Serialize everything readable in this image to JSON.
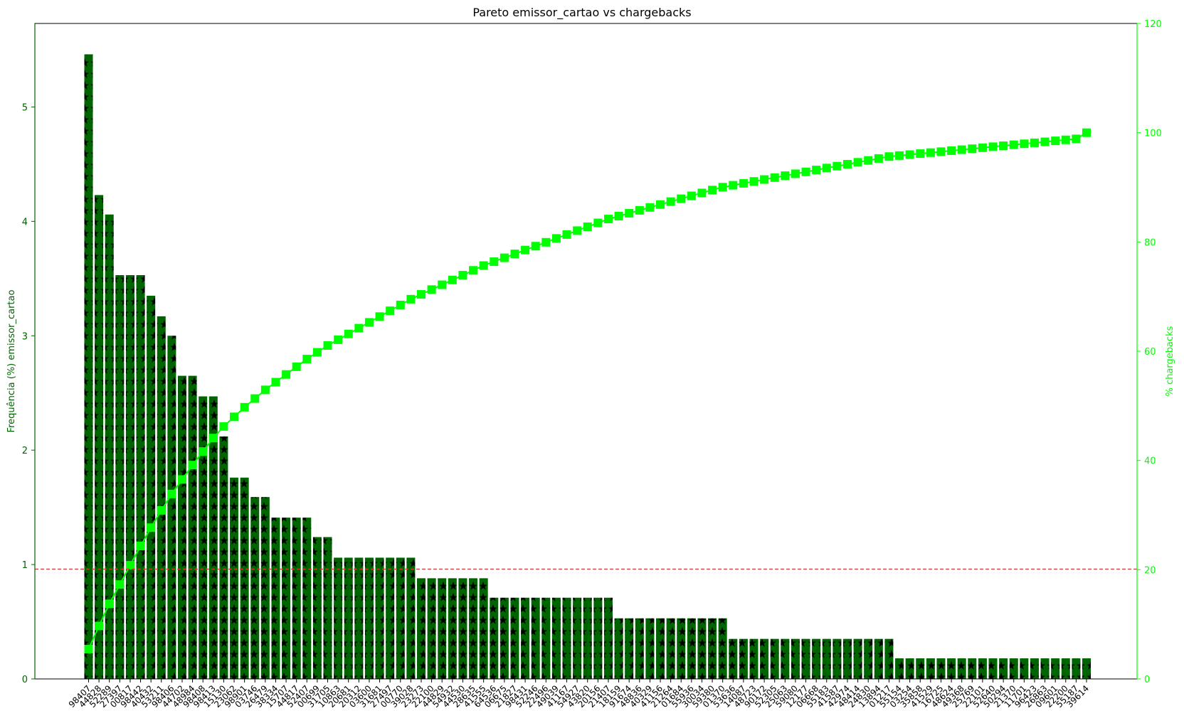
{
  "chart_data": {
    "type": "bar",
    "title": "Pareto emissor_cartao vs chargebacks",
    "ylabel": "Frequência (%) emissor_cartao",
    "ylabel_right": "% chargebacks",
    "ylim": [
      0,
      5.73
    ],
    "ylim_right": [
      0,
      120
    ],
    "yticks": [
      "0",
      "1",
      "2",
      "3",
      "4",
      "5"
    ],
    "yticks_right": [
      "0",
      "20",
      "40",
      "60",
      "80",
      "100",
      "120"
    ],
    "threshold": 0.96,
    "categories": [
      "98407",
      "44828",
      "52289",
      "27397",
      "00817",
      "98442",
      "40432",
      "53211",
      "98406",
      "44702",
      "48984",
      "98408",
      "98413",
      "15130",
      "23062",
      "98901",
      "03746",
      "26479",
      "38334",
      "15707",
      "44817",
      "52407",
      "00699",
      "31705",
      "10863",
      "20681",
      "20312",
      "03600",
      "31681",
      "27497",
      "00770",
      "39028",
      "23273",
      "22100",
      "44829",
      "54932",
      "44530",
      "28635",
      "41555",
      "64536",
      "06675",
      "21827",
      "98431",
      "52246",
      "22496",
      "49039",
      "41167",
      "54927",
      "43820",
      "20156",
      "21407",
      "18159",
      "91674",
      "48836",
      "40329",
      "41156",
      "21264",
      "01684",
      "55936",
      "30034",
      "59380",
      "01370",
      "53636",
      "14087",
      "48723",
      "90172",
      "52305",
      "25063",
      "59080",
      "12177",
      "06668",
      "55183",
      "41587",
      "42974",
      "48414",
      "24830",
      "13894",
      "01217",
      "55154",
      "03254",
      "35858",
      "41529",
      "16725",
      "48624",
      "49368",
      "25769",
      "22101",
      "52640",
      "50294",
      "21370",
      "11701",
      "96423",
      "26863",
      "09601",
      "22200",
      "55187",
      "39614"
    ],
    "series": [
      {
        "values": [
          5.46,
          4.23,
          4.06,
          3.53,
          3.53,
          3.53,
          3.35,
          3.17,
          3.0,
          2.65,
          2.65,
          2.47,
          2.47,
          2.12,
          1.76,
          1.76,
          1.59,
          1.59,
          1.41,
          1.41,
          1.41,
          1.41,
          1.24,
          1.24,
          1.06,
          1.06,
          1.06,
          1.06,
          1.06,
          1.06,
          1.06,
          1.06,
          0.88,
          0.88,
          0.88,
          0.88,
          0.88,
          0.88,
          0.88,
          0.71,
          0.71,
          0.71,
          0.71,
          0.71,
          0.71,
          0.71,
          0.71,
          0.71,
          0.71,
          0.71,
          0.71,
          0.53,
          0.53,
          0.53,
          0.53,
          0.53,
          0.53,
          0.53,
          0.53,
          0.53,
          0.53,
          0.53,
          0.35,
          0.35,
          0.35,
          0.35,
          0.35,
          0.35,
          0.35,
          0.35,
          0.35,
          0.35,
          0.35,
          0.35,
          0.35,
          0.35,
          0.35,
          0.35,
          0.18,
          0.18,
          0.18,
          0.18,
          0.18,
          0.18,
          0.18,
          0.18,
          0.18,
          0.18,
          0.18,
          0.18,
          0.18,
          0.18,
          0.18,
          0.18,
          0.18,
          0.18,
          0.18
        ]
      },
      {
        "axis": "right",
        "values": [
          5.46,
          9.69,
          13.75,
          17.28,
          20.81,
          24.34,
          27.69,
          30.86,
          33.86,
          36.51,
          39.16,
          41.63,
          44.1,
          46.22,
          47.98,
          49.74,
          51.33,
          52.92,
          54.33,
          55.74,
          57.15,
          58.56,
          59.8,
          61.04,
          62.1,
          63.16,
          64.22,
          65.28,
          66.34,
          67.4,
          68.46,
          69.52,
          70.4,
          71.28,
          72.16,
          73.04,
          73.92,
          74.8,
          75.68,
          76.39,
          77.1,
          77.81,
          78.52,
          79.23,
          79.94,
          80.65,
          81.36,
          82.07,
          82.78,
          83.49,
          84.2,
          84.73,
          85.26,
          85.79,
          86.32,
          86.85,
          87.38,
          87.91,
          88.44,
          88.97,
          89.5,
          90.03,
          90.38,
          90.73,
          91.08,
          91.43,
          91.78,
          92.13,
          92.48,
          92.83,
          93.18,
          93.53,
          93.88,
          94.23,
          94.58,
          94.93,
          95.28,
          95.63,
          95.81,
          95.99,
          96.17,
          96.35,
          96.53,
          96.71,
          96.89,
          97.07,
          97.25,
          97.43,
          97.61,
          97.79,
          97.97,
          98.15,
          98.33,
          98.51,
          98.69,
          98.87,
          100.0
        ]
      }
    ],
    "colors": {
      "bar_fill": "#006400",
      "bar_hatch": "#000000",
      "left_axis": "#006400",
      "line": "#00ff00",
      "threshold": "#e03030"
    }
  }
}
